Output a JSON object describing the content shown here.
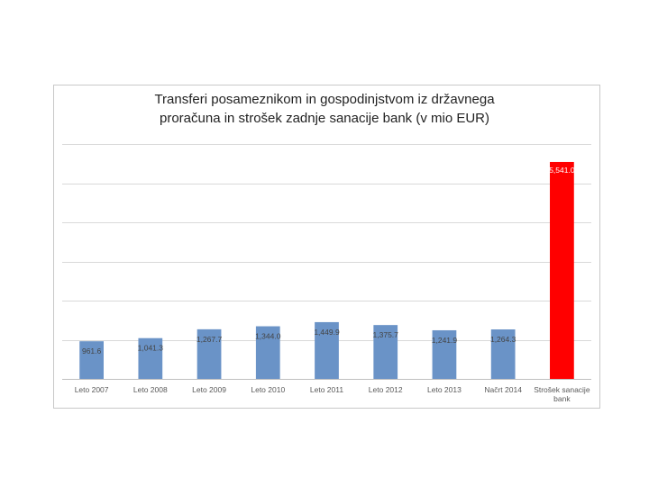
{
  "chart_data": {
    "type": "bar",
    "title_lines": [
      "Transferi posameznikom in gospodinjstvom iz državnega",
      "proračuna in strošek zadnje sanacije bank (v mio EUR)"
    ],
    "categories": [
      "Leto 2007",
      "Leto 2008",
      "Leto 2009",
      "Leto 2010",
      "Leto 2011",
      "Leto 2012",
      "Leto 2013",
      "Načrt 2014",
      [
        "Strošek sanacije",
        "bank"
      ]
    ],
    "values": [
      961.6,
      1041.3,
      1267.7,
      1344.0,
      1449.9,
      1375.7,
      1241.9,
      1264.3,
      5541.0
    ],
    "value_labels": [
      "961.6",
      "1,041.3",
      "1,267.7",
      "1,344.0",
      "1,449.9",
      "1,375.7",
      "1,241.9",
      "1,264.3",
      "5,541.0"
    ],
    "colors": [
      "#6a93c7",
      "#6a93c7",
      "#6a93c7",
      "#6a93c7",
      "#6a93c7",
      "#6a93c7",
      "#6a93c7",
      "#6a93c7",
      "#ff0000"
    ],
    "gridlines": true,
    "ylim": [
      0,
      6000
    ],
    "y_tick_step": 1000,
    "show_y_tick_labels": false,
    "legend": "none"
  }
}
